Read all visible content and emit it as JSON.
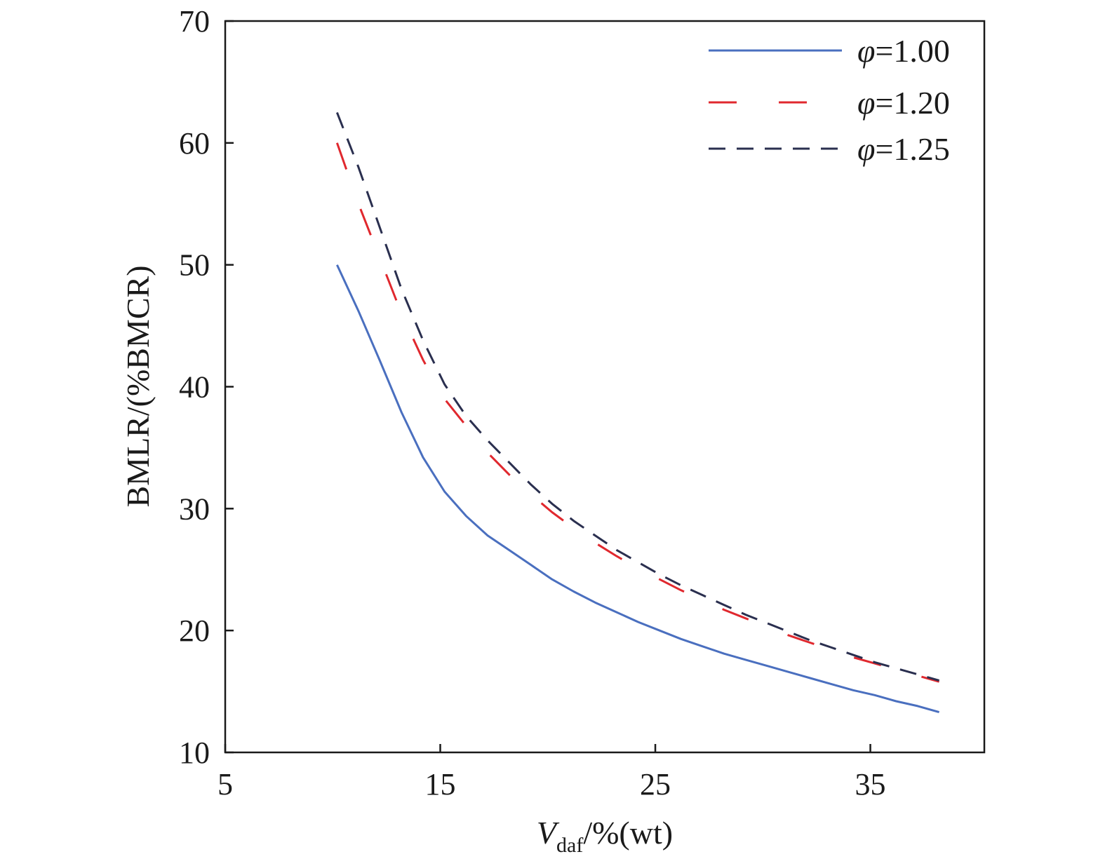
{
  "chart_data": {
    "type": "line",
    "title": "",
    "xlabel": {
      "main": "V",
      "sub": "daf",
      "rest": "/%(wt)"
    },
    "ylabel": "BMLR/(%BMCR)",
    "xlim": [
      5,
      40.3
    ],
    "ylim": [
      10,
      70
    ],
    "xticks": [
      5,
      15,
      25,
      35
    ],
    "yticks": [
      10,
      20,
      30,
      40,
      50,
      60,
      70
    ],
    "xtick_labels": [
      "5",
      "15",
      "25",
      "35"
    ],
    "ytick_labels": [
      "10",
      "20",
      "30",
      "40",
      "50",
      "60",
      "70"
    ],
    "grid": false,
    "legend_position": "top-right",
    "series": [
      {
        "name": "φ=1.00",
        "legend_symbol": "φ",
        "legend_value": "=1.00",
        "color": "#4a6fbf",
        "dash": "none",
        "x": [
          10.2,
          11.2,
          12.2,
          13.2,
          14.2,
          15.2,
          16.2,
          17.2,
          18.2,
          19.2,
          20.2,
          21.2,
          22.2,
          23.2,
          24.2,
          25.2,
          26.2,
          27.2,
          28.2,
          29.2,
          30.2,
          31.2,
          32.2,
          33.2,
          34.2,
          35.2,
          36.2,
          37.2,
          38.2
        ],
        "y": [
          50.0,
          46.2,
          42.1,
          37.9,
          34.2,
          31.4,
          29.4,
          27.8,
          26.6,
          25.4,
          24.2,
          23.2,
          22.3,
          21.5,
          20.7,
          20.0,
          19.3,
          18.7,
          18.1,
          17.6,
          17.1,
          16.6,
          16.1,
          15.6,
          15.1,
          14.7,
          14.2,
          13.8,
          13.3
        ]
      },
      {
        "name": "φ=1.20",
        "legend_symbol": "φ",
        "legend_value": "=1.20",
        "color": "#e0282e",
        "dash": "40 60",
        "x": [
          10.2,
          11.2,
          12.2,
          13.2,
          14.2,
          15.2,
          16.2,
          17.2,
          18.2,
          19.2,
          20.2,
          21.2,
          22.2,
          23.2,
          24.2,
          25.2,
          26.2,
          27.2,
          28.2,
          29.2,
          30.2,
          31.2,
          32.2,
          33.2,
          34.2,
          35.2,
          36.2,
          37.2,
          38.2
        ],
        "y": [
          60.0,
          55.0,
          50.5,
          46.0,
          42.2,
          39.0,
          36.8,
          34.6,
          32.8,
          31.2,
          29.7,
          28.4,
          27.2,
          26.1,
          25.1,
          24.2,
          23.3,
          22.5,
          21.7,
          21.0,
          20.3,
          19.6,
          19.0,
          18.4,
          17.8,
          17.3,
          16.8,
          16.3,
          15.8
        ]
      },
      {
        "name": "φ=1.25",
        "legend_symbol": "φ",
        "legend_value": "=1.25",
        "color": "#2a2f4f",
        "dash": "24 16",
        "x": [
          10.2,
          11.2,
          12.2,
          13.2,
          14.2,
          15.2,
          16.2,
          17.2,
          18.2,
          19.2,
          20.2,
          21.2,
          22.2,
          23.2,
          24.2,
          25.2,
          26.2,
          27.2,
          28.2,
          29.2,
          30.2,
          31.2,
          32.2,
          33.2,
          34.2,
          35.2,
          36.2,
          37.2,
          38.2
        ],
        "y": [
          62.5,
          58.0,
          53.0,
          48.0,
          43.8,
          40.2,
          37.6,
          35.6,
          33.8,
          32.0,
          30.4,
          29.0,
          27.8,
          26.6,
          25.6,
          24.6,
          23.7,
          22.9,
          22.1,
          21.3,
          20.6,
          19.9,
          19.2,
          18.6,
          18.0,
          17.4,
          16.9,
          16.4,
          15.9
        ]
      }
    ]
  }
}
